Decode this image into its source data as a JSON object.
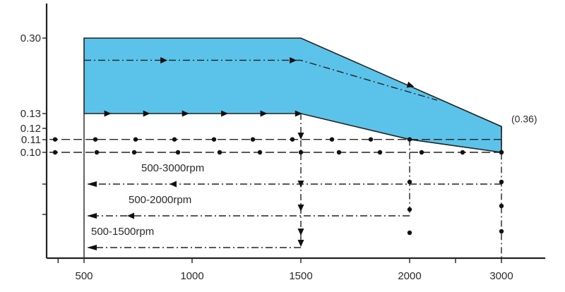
{
  "chart_data": {
    "type": "area",
    "title": "",
    "xlabel": "",
    "ylabel": "",
    "xlim": [
      380,
      3200
    ],
    "ylim": [
      0.0,
      0.32
    ],
    "x_ticks": [
      {
        "value": 500,
        "label": "500"
      },
      {
        "value": 1000,
        "label": "1000"
      },
      {
        "value": 1500,
        "label": "1500"
      },
      {
        "value": 2000,
        "label": "2000"
      },
      {
        "value": 3000,
        "label": "3000"
      }
    ],
    "y_ticks": [
      {
        "value": 0.3,
        "label": "0.30"
      },
      {
        "value": 0.13,
        "label": "0.13"
      },
      {
        "value": 0.12,
        "label": "0.12"
      },
      {
        "value": 0.11,
        "label": "0.11"
      },
      {
        "value": 0.1,
        "label": "0.10"
      }
    ],
    "minor_y_ticks": [
      0.07,
      0.04
    ],
    "region": {
      "color": "#5bc3ea",
      "upper": [
        {
          "x": 500,
          "y": 0.3
        },
        {
          "x": 1500,
          "y": 0.3
        },
        {
          "x": 3000,
          "y": 0.12
        }
      ],
      "lower": [
        {
          "x": 500,
          "y": 0.13
        },
        {
          "x": 1500,
          "y": 0.13
        },
        {
          "x": 2000,
          "y": 0.11
        },
        {
          "x": 3000,
          "y": 0.1
        }
      ]
    },
    "inner_path": [
      {
        "x": 500,
        "y": 0.25
      },
      {
        "x": 1500,
        "y": 0.25
      },
      {
        "x": 2300,
        "y": 0.16
      }
    ],
    "annotation": {
      "text": "(0.36)",
      "x": 3000,
      "y": 0.12
    },
    "ranges": [
      {
        "label": "500-3000rpm",
        "x_start": 500,
        "x_end": 3000,
        "y": 0.07
      },
      {
        "label": "500-2000rpm",
        "x_start": 500,
        "x_end": 2000,
        "y": 0.04
      },
      {
        "label": "500-1500rpm",
        "x_start": 500,
        "x_end": 1500,
        "y": 0.01
      }
    ],
    "reference_lines": [
      0.11,
      0.1
    ],
    "grid": false,
    "legend": "none"
  }
}
